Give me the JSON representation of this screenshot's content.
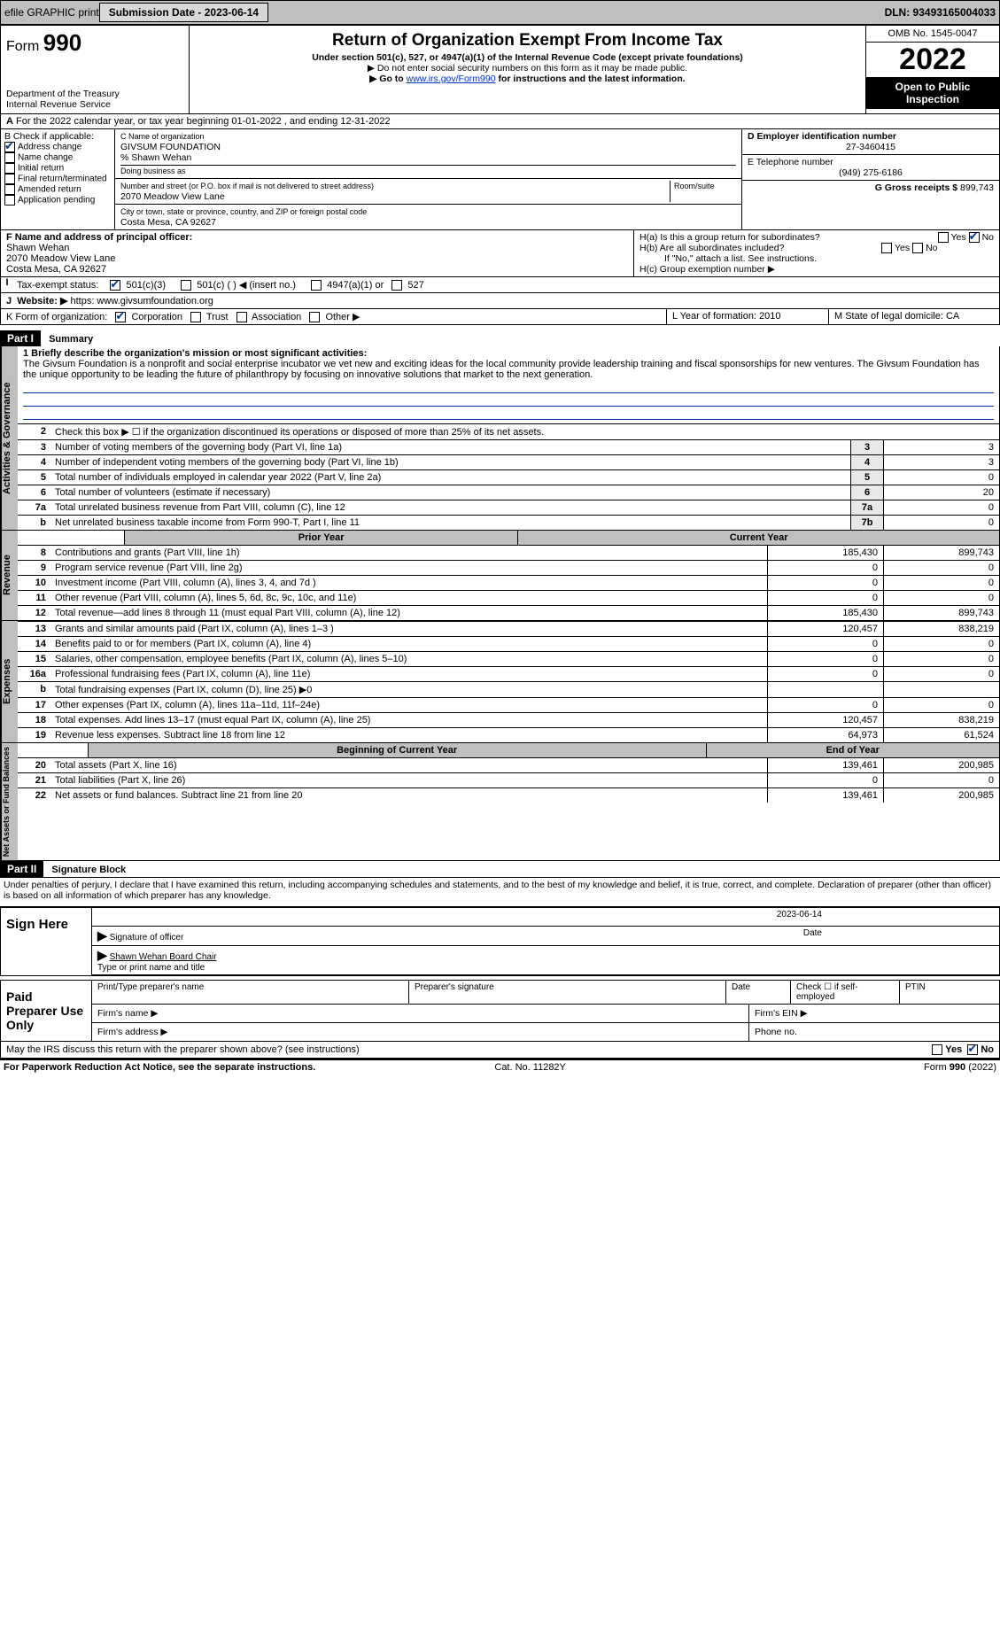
{
  "topbar": {
    "efile": "efile GRAPHIC print",
    "submission_label": "Submission Date - 2023-06-14",
    "dln_label": "DLN: 93493165004033"
  },
  "header": {
    "form_prefix": "Form",
    "form_number": "990",
    "dept": "Department of the Treasury",
    "irs": "Internal Revenue Service",
    "title": "Return of Organization Exempt From Income Tax",
    "subtitle": "Under section 501(c), 527, or 4947(a)(1) of the Internal Revenue Code (except private foundations)",
    "warn": "▶ Do not enter social security numbers on this form as it may be made public.",
    "goto_pre": "▶ Go to ",
    "goto_link": "www.irs.gov/Form990",
    "goto_post": " for instructions and the latest information.",
    "omb": "OMB No. 1545-0047",
    "year": "2022",
    "open": "Open to Public Inspection"
  },
  "A": {
    "line": "For the 2022 calendar year, or tax year beginning 01-01-2022   , and ending 12-31-2022"
  },
  "B": {
    "label": "B Check if applicable:",
    "items": [
      {
        "label": "Address change",
        "checked": true
      },
      {
        "label": "Name change",
        "checked": false
      },
      {
        "label": "Initial return",
        "checked": false
      },
      {
        "label": "Final return/terminated",
        "checked": false
      },
      {
        "label": "Amended return",
        "checked": false
      },
      {
        "label": "Application pending",
        "checked": false
      }
    ]
  },
  "C": {
    "name_label": "C Name of organization",
    "name": "GIVSUM FOUNDATION",
    "care_of": "% Shawn Wehan",
    "dba_label": "Doing business as",
    "addr_label": "Number and street (or P.O. box if mail is not delivered to street address)",
    "room_label": "Room/suite",
    "addr": "2070 Meadow View Lane",
    "city_label": "City or town, state or province, country, and ZIP or foreign postal code",
    "city": "Costa Mesa, CA  92627"
  },
  "D": {
    "label": "D Employer identification number",
    "value": "27-3460415"
  },
  "E": {
    "label": "E Telephone number",
    "value": "(949) 275-6186"
  },
  "G": {
    "label": "G Gross receipts $",
    "value": "899,743"
  },
  "F": {
    "label": "F  Name and address of principal officer:",
    "name": "Shawn Wehan",
    "addr1": "2070 Meadow View Lane",
    "addr2": "Costa Mesa, CA  92627"
  },
  "H": {
    "a": "H(a)  Is this a group return for subordinates?",
    "a_yes": "Yes",
    "a_no": "No",
    "b": "H(b)  Are all subordinates included?",
    "b_note": "If \"No,\" attach a list. See instructions.",
    "c": "H(c)  Group exemption number ▶"
  },
  "I": {
    "label": "Tax-exempt status:",
    "opts": [
      "501(c)(3)",
      "501(c) (  ) ◀ (insert no.)",
      "4947(a)(1) or",
      "527"
    ]
  },
  "J": {
    "label": "Website: ▶",
    "value": "https: www.givsumfoundation.org"
  },
  "K": {
    "label": "K Form of organization:",
    "opts": [
      "Corporation",
      "Trust",
      "Association",
      "Other ▶"
    ]
  },
  "L": {
    "label": "L Year of formation: 2010"
  },
  "M": {
    "label": "M State of legal domicile: CA"
  },
  "partI": {
    "bar": "Part I",
    "title": "Summary",
    "q1": "1 Briefly describe the organization's mission or most significant activities:",
    "mission": "The Givsum Foundation is a nonprofit and social enterprise incubator we vet new and exciting ideas for the local community provide leadership training and fiscal sponsorships for new ventures. The Givsum Foundation has the unique opportunity to be leading the future of philanthropy by focusing on innovative solutions that market to the next generation.",
    "q2": "Check this box ▶ ☐  if the organization discontinued its operations or disposed of more than 25% of its net assets.",
    "rows_gov": [
      {
        "n": "3",
        "t": "Number of voting members of the governing body (Part VI, line 1a)",
        "box": "3",
        "v": "3"
      },
      {
        "n": "4",
        "t": "Number of independent voting members of the governing body (Part VI, line 1b)",
        "box": "4",
        "v": "3"
      },
      {
        "n": "5",
        "t": "Total number of individuals employed in calendar year 2022 (Part V, line 2a)",
        "box": "5",
        "v": "0"
      },
      {
        "n": "6",
        "t": "Total number of volunteers (estimate if necessary)",
        "box": "6",
        "v": "20"
      },
      {
        "n": "7a",
        "t": "Total unrelated business revenue from Part VIII, column (C), line 12",
        "box": "7a",
        "v": "0"
      },
      {
        "n": "b",
        "t": "Net unrelated business taxable income from Form 990-T, Part I, line 11",
        "box": "7b",
        "v": "0"
      }
    ],
    "hdr_prior": "Prior Year",
    "hdr_curr": "Current Year",
    "rows_rev": [
      {
        "n": "8",
        "t": "Contributions and grants (Part VIII, line 1h)",
        "p": "185,430",
        "c": "899,743"
      },
      {
        "n": "9",
        "t": "Program service revenue (Part VIII, line 2g)",
        "p": "0",
        "c": "0"
      },
      {
        "n": "10",
        "t": "Investment income (Part VIII, column (A), lines 3, 4, and 7d )",
        "p": "0",
        "c": "0"
      },
      {
        "n": "11",
        "t": "Other revenue (Part VIII, column (A), lines 5, 6d, 8c, 9c, 10c, and 11e)",
        "p": "0",
        "c": "0"
      },
      {
        "n": "12",
        "t": "Total revenue—add lines 8 through 11 (must equal Part VIII, column (A), line 12)",
        "p": "185,430",
        "c": "899,743"
      }
    ],
    "rows_exp": [
      {
        "n": "13",
        "t": "Grants and similar amounts paid (Part IX, column (A), lines 1–3 )",
        "p": "120,457",
        "c": "838,219"
      },
      {
        "n": "14",
        "t": "Benefits paid to or for members (Part IX, column (A), line 4)",
        "p": "0",
        "c": "0"
      },
      {
        "n": "15",
        "t": "Salaries, other compensation, employee benefits (Part IX, column (A), lines 5–10)",
        "p": "0",
        "c": "0"
      },
      {
        "n": "16a",
        "t": "Professional fundraising fees (Part IX, column (A), line 11e)",
        "p": "0",
        "c": "0"
      },
      {
        "n": "b",
        "t": "Total fundraising expenses (Part IX, column (D), line 25) ▶0",
        "p": "",
        "c": ""
      },
      {
        "n": "17",
        "t": "Other expenses (Part IX, column (A), lines 11a–11d, 11f–24e)",
        "p": "0",
        "c": "0"
      },
      {
        "n": "18",
        "t": "Total expenses. Add lines 13–17 (must equal Part IX, column (A), line 25)",
        "p": "120,457",
        "c": "838,219"
      },
      {
        "n": "19",
        "t": "Revenue less expenses. Subtract line 18 from line 12",
        "p": "64,973",
        "c": "61,524"
      }
    ],
    "hdr_beg": "Beginning of Current Year",
    "hdr_end": "End of Year",
    "rows_net": [
      {
        "n": "20",
        "t": "Total assets (Part X, line 16)",
        "p": "139,461",
        "c": "200,985"
      },
      {
        "n": "21",
        "t": "Total liabilities (Part X, line 26)",
        "p": "0",
        "c": "0"
      },
      {
        "n": "22",
        "t": "Net assets or fund balances. Subtract line 21 from line 20",
        "p": "139,461",
        "c": "200,985"
      }
    ]
  },
  "partII": {
    "bar": "Part II",
    "title": "Signature Block",
    "decl": "Under penalties of perjury, I declare that I have examined this return, including accompanying schedules and statements, and to the best of my knowledge and belief, it is true, correct, and complete. Declaration of preparer (other than officer) is based on all information of which preparer has any knowledge.",
    "sign_here": "Sign Here",
    "sig_officer": "Signature of officer",
    "sig_date": "2023-06-14",
    "date_lbl": "Date",
    "officer_name": "Shawn Wehan  Board Chair",
    "type_name": "Type or print name and title",
    "paid": "Paid Preparer Use Only",
    "pp_name": "Print/Type preparer's name",
    "pp_sig": "Preparer's signature",
    "pp_date": "Date",
    "pp_check": "Check ☐ if self-employed",
    "ptin": "PTIN",
    "firm_name": "Firm's name    ▶",
    "firm_ein": "Firm's EIN ▶",
    "firm_addr": "Firm's address ▶",
    "phone": "Phone no.",
    "discuss": "May the IRS discuss this return with the preparer shown above? (see instructions)",
    "yes": "Yes",
    "no": "No"
  },
  "footer": {
    "pra": "For Paperwork Reduction Act Notice, see the separate instructions.",
    "cat": "Cat. No. 11282Y",
    "form": "Form 990 (2022)"
  },
  "colors": {
    "accent": "#003399",
    "grey": "#bfbfbf"
  }
}
